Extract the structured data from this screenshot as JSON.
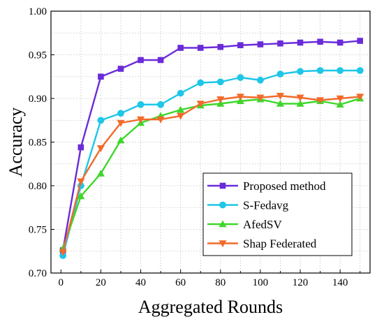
{
  "chart_data": {
    "type": "line",
    "xlabel": "Aggregated Rounds",
    "ylabel": "Accuracy",
    "xlim": [
      -5,
      155
    ],
    "ylim": [
      0.7,
      1.0
    ],
    "x_ticks": [
      0,
      20,
      40,
      60,
      80,
      100,
      120,
      140
    ],
    "x_tick_labels": [
      "0",
      "20",
      "40",
      "60",
      "80",
      "100",
      "120",
      "140"
    ],
    "y_ticks": [
      0.7,
      0.75,
      0.8,
      0.85,
      0.9,
      0.95,
      1.0
    ],
    "y_tick_labels": [
      "0.70",
      "0.75",
      "0.80",
      "0.85",
      "0.90",
      "0.95",
      "1.00"
    ],
    "grid": true,
    "legend_position": "bottom-right",
    "x": [
      1,
      10,
      20,
      30,
      40,
      50,
      60,
      70,
      80,
      90,
      100,
      110,
      120,
      130,
      140,
      150
    ],
    "series": [
      {
        "name": "Proposed method",
        "color": "#6a2bd9",
        "marker": "square",
        "values": [
          0.726,
          0.844,
          0.925,
          0.934,
          0.944,
          0.944,
          0.958,
          0.958,
          0.959,
          0.961,
          0.962,
          0.963,
          0.964,
          0.965,
          0.964,
          0.966
        ]
      },
      {
        "name": "S-Fedavg",
        "color": "#1ec6e8",
        "marker": "circle",
        "values": [
          0.72,
          0.8,
          0.875,
          0.883,
          0.893,
          0.893,
          0.906,
          0.918,
          0.919,
          0.924,
          0.921,
          0.928,
          0.931,
          0.932,
          0.932,
          0.932
        ]
      },
      {
        "name": "AfedSV",
        "color": "#3fd62b",
        "marker": "triangle-up",
        "values": [
          0.728,
          0.788,
          0.814,
          0.852,
          0.872,
          0.88,
          0.887,
          0.892,
          0.894,
          0.897,
          0.899,
          0.894,
          0.894,
          0.897,
          0.893,
          0.9
        ]
      },
      {
        "name": "Shap Federated",
        "color": "#f26a2a",
        "marker": "triangle-down",
        "values": [
          0.724,
          0.805,
          0.843,
          0.872,
          0.876,
          0.876,
          0.88,
          0.894,
          0.899,
          0.902,
          0.901,
          0.903,
          0.901,
          0.898,
          0.9,
          0.902
        ]
      }
    ]
  }
}
